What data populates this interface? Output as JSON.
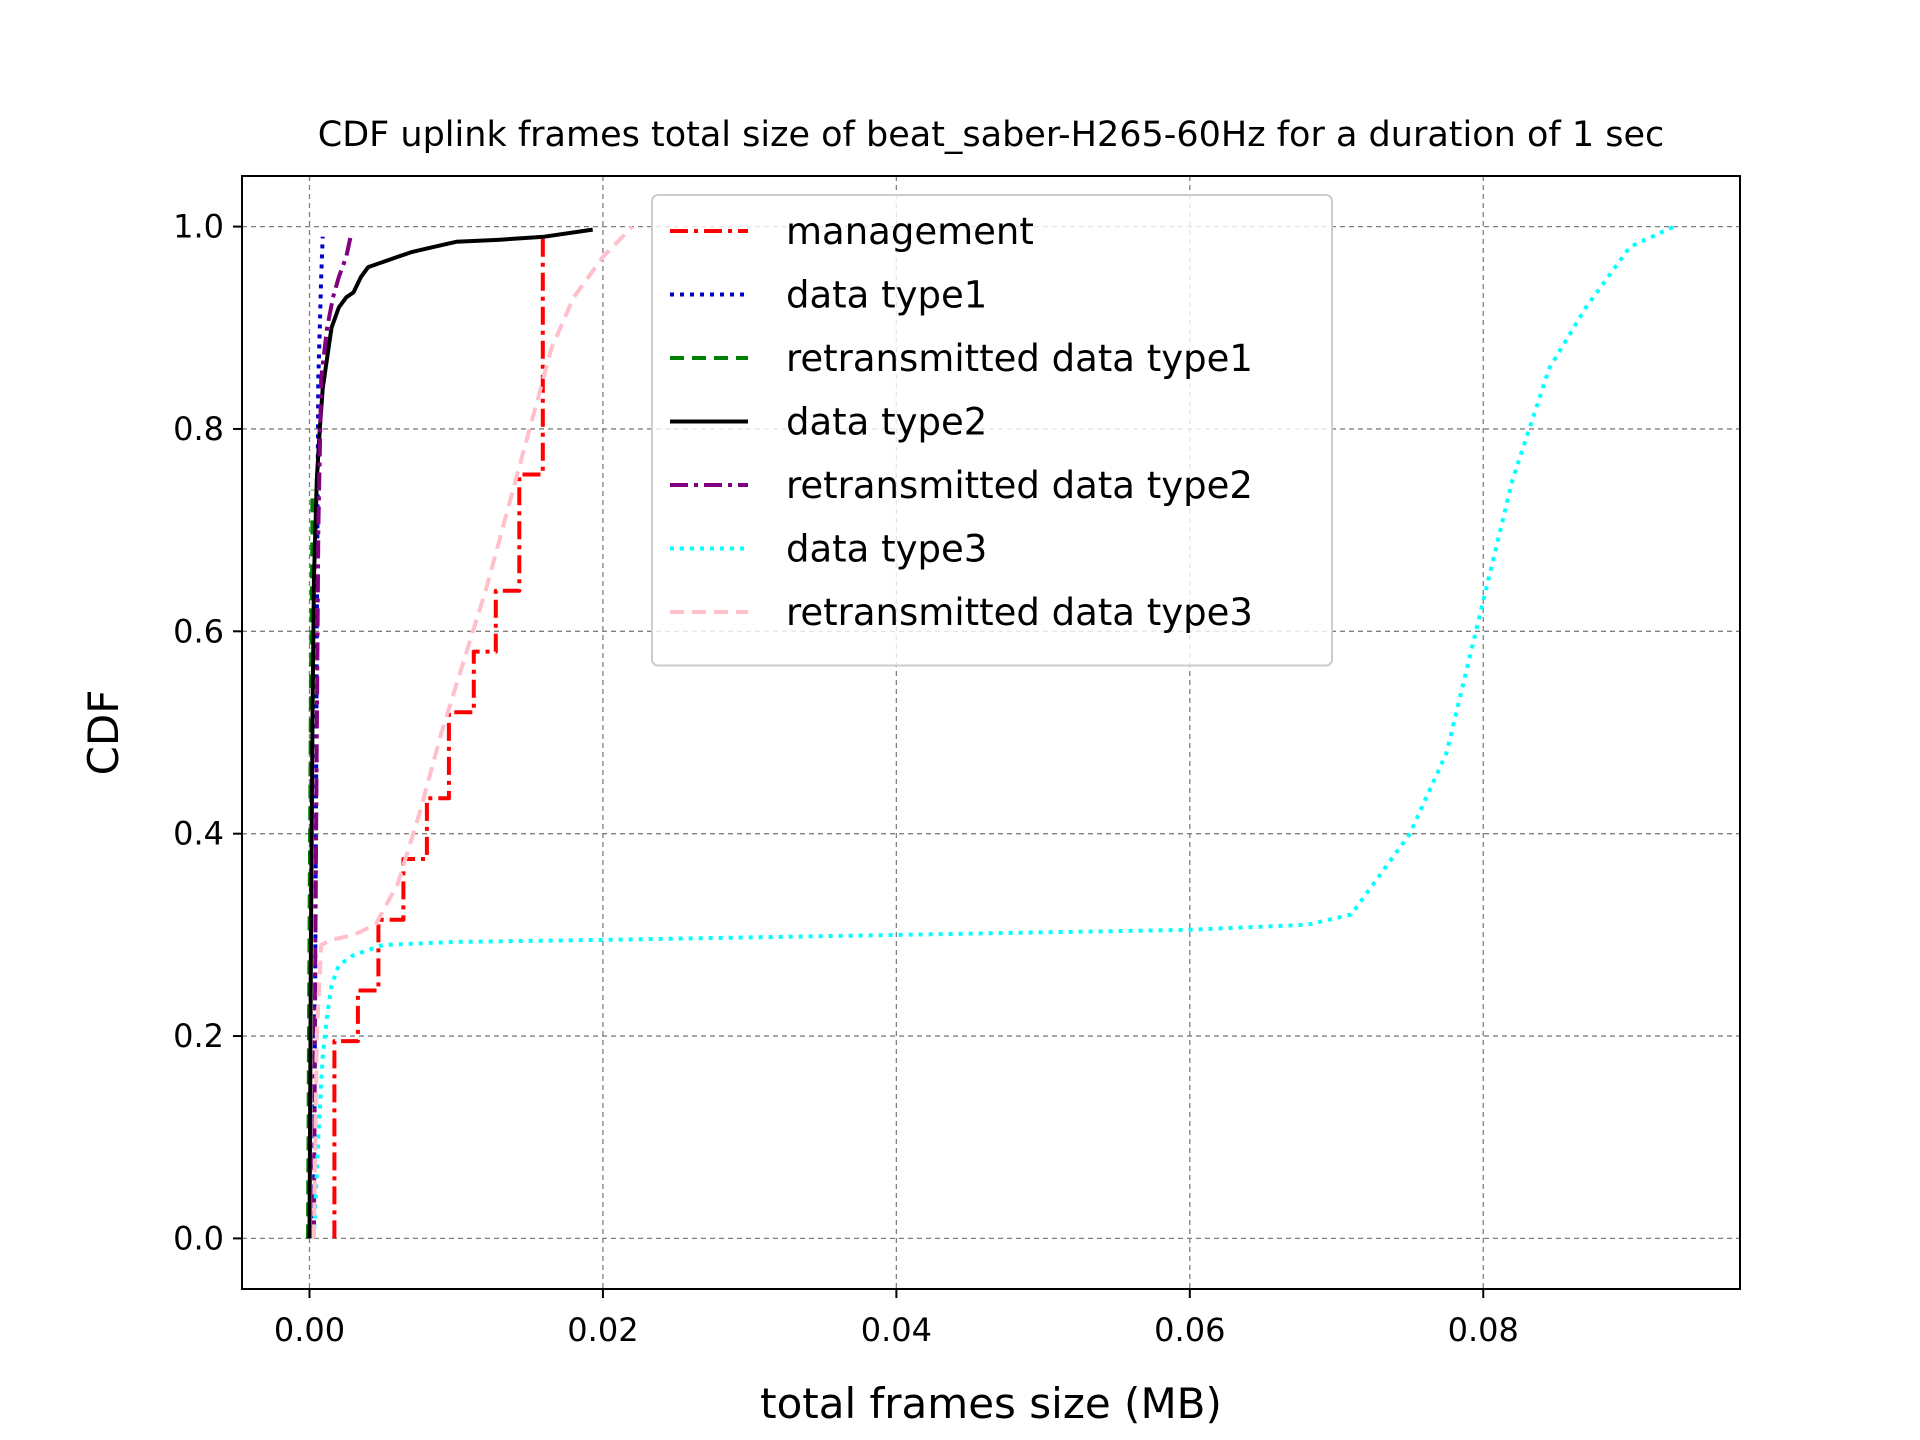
{
  "chart_data": {
    "type": "line",
    "title": "CDF uplink frames total size of beat_saber-H265-60Hz for a duration of 1 sec",
    "xlabel": "total frames size (MB)",
    "ylabel": "CDF",
    "xlim": [
      -0.0046,
      0.0975
    ],
    "ylim": [
      -0.05,
      1.05
    ],
    "xticks": [
      0.0,
      0.02,
      0.04,
      0.06,
      0.08
    ],
    "xtick_labels": [
      "0.00",
      "0.02",
      "0.04",
      "0.06",
      "0.08"
    ],
    "yticks": [
      0.0,
      0.2,
      0.4,
      0.6,
      0.8,
      1.0
    ],
    "ytick_labels": [
      "0.0",
      "0.2",
      "0.4",
      "0.6",
      "0.8",
      "1.0"
    ],
    "grid": true,
    "legend_position": "top-center",
    "series": [
      {
        "name": "management",
        "color": "#ff0000",
        "dash": "dashdot",
        "x": [
          0.0017,
          0.0017,
          0.0033,
          0.0033,
          0.0047,
          0.0047,
          0.0064,
          0.0064,
          0.008,
          0.008,
          0.0095,
          0.0095,
          0.0112,
          0.0112,
          0.0127,
          0.0127,
          0.0143,
          0.0143,
          0.0159,
          0.0159
        ],
        "y": [
          0.0,
          0.195,
          0.195,
          0.245,
          0.245,
          0.315,
          0.315,
          0.375,
          0.375,
          0.435,
          0.435,
          0.52,
          0.52,
          0.58,
          0.58,
          0.64,
          0.64,
          0.755,
          0.755,
          0.99
        ]
      },
      {
        "name": "data type1",
        "color": "#0000cc",
        "dash": "dotted",
        "x": [
          0.0003,
          0.0004,
          0.0005,
          0.0006,
          0.0007,
          0.0008,
          0.0009
        ],
        "y": [
          0.0,
          0.3,
          0.6,
          0.85,
          0.9,
          0.95,
          0.99
        ]
      },
      {
        "name": "retransmitted data type1",
        "color": "#008000",
        "dash": "dashed",
        "x": [
          -0.0001,
          0.0,
          0.0001,
          0.0002,
          0.0002
        ],
        "y": [
          0.0,
          0.3,
          0.55,
          0.7,
          0.74
        ]
      },
      {
        "name": "data type2",
        "color": "#000000",
        "dash": "solid",
        "x": [
          0.0,
          0.0001,
          0.0002,
          0.0003,
          0.0005,
          0.0007,
          0.0009,
          0.0012,
          0.0015,
          0.002,
          0.0025,
          0.003,
          0.0035,
          0.004,
          0.005,
          0.006,
          0.007,
          0.0085,
          0.01,
          0.013,
          0.016,
          0.0193
        ],
        "y": [
          0.0,
          0.3,
          0.5,
          0.65,
          0.75,
          0.8,
          0.84,
          0.87,
          0.9,
          0.92,
          0.93,
          0.935,
          0.95,
          0.96,
          0.965,
          0.97,
          0.975,
          0.98,
          0.985,
          0.987,
          0.99,
          0.997
        ]
      },
      {
        "name": "retransmitted data type2",
        "color": "#800080",
        "dash": "dashdot",
        "x": [
          0.0003,
          0.0004,
          0.0005,
          0.0006,
          0.0008,
          0.0012,
          0.0016,
          0.002,
          0.0025,
          0.0028
        ],
        "y": [
          0.0,
          0.3,
          0.5,
          0.7,
          0.85,
          0.9,
          0.93,
          0.95,
          0.97,
          0.99
        ]
      },
      {
        "name": "data type3",
        "color": "#00ffff",
        "dash": "dotted",
        "x": [
          0.0003,
          0.0006,
          0.0009,
          0.0012,
          0.0015,
          0.002,
          0.003,
          0.005,
          0.01,
          0.02,
          0.04,
          0.06,
          0.068,
          0.071,
          0.073,
          0.075,
          0.0775,
          0.0795,
          0.082,
          0.0845,
          0.087,
          0.09,
          0.093
        ],
        "y": [
          0.0,
          0.1,
          0.18,
          0.22,
          0.25,
          0.27,
          0.28,
          0.29,
          0.293,
          0.295,
          0.3,
          0.305,
          0.31,
          0.32,
          0.36,
          0.4,
          0.48,
          0.6,
          0.75,
          0.86,
          0.92,
          0.98,
          1.0
        ]
      },
      {
        "name": "retransmitted data type3",
        "color": "#ffc0cb",
        "dash": "dashed",
        "x": [
          0.0003,
          0.0005,
          0.0008,
          0.0015,
          0.003,
          0.0045,
          0.006,
          0.0075,
          0.009,
          0.0105,
          0.012,
          0.0135,
          0.015,
          0.0165,
          0.018,
          0.02,
          0.022
        ],
        "y": [
          0.0,
          0.2,
          0.29,
          0.295,
          0.3,
          0.31,
          0.35,
          0.42,
          0.5,
          0.57,
          0.64,
          0.72,
          0.8,
          0.88,
          0.93,
          0.97,
          1.0
        ]
      }
    ]
  }
}
